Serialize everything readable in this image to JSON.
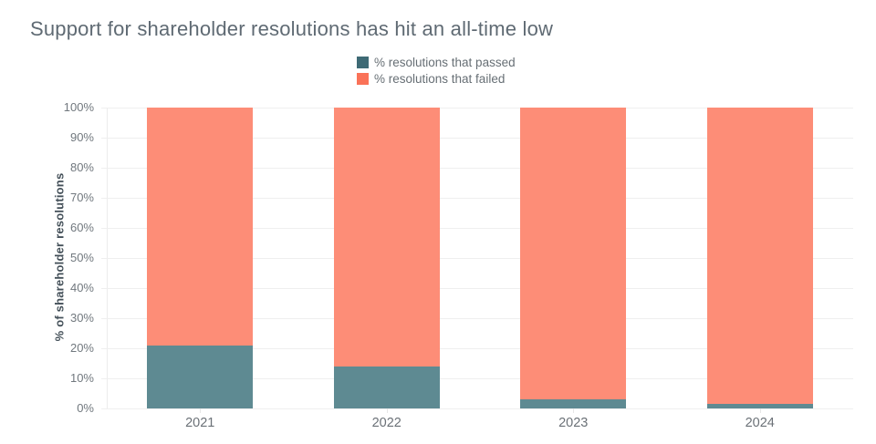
{
  "title": "Support for shareholder resolutions has hit an all-time low",
  "legend": {
    "items": [
      {
        "label": "% resolutions that passed",
        "color": "#3e6a75"
      },
      {
        "label": "% resolutions that failed",
        "color": "#fa7258"
      }
    ]
  },
  "chart_data": {
    "type": "bar",
    "stacked": true,
    "title": "Support for shareholder resolutions has hit an all-time low",
    "xlabel": "",
    "ylabel": "% of shareholder resolutions",
    "ylim": [
      0,
      100
    ],
    "grid": true,
    "legend_position": "top-center",
    "categories": [
      "2021",
      "2022",
      "2023",
      "2024"
    ],
    "series": [
      {
        "name": "% resolutions that passed",
        "color": "#5e8a92",
        "values": [
          21,
          14,
          3,
          1.5
        ]
      },
      {
        "name": "% resolutions that failed",
        "color": "#fd8d77",
        "values": [
          79,
          86,
          97,
          98.5
        ]
      }
    ],
    "yticks": [
      {
        "label": "0%",
        "value": 0
      },
      {
        "label": "10%",
        "value": 10
      },
      {
        "label": "20%",
        "value": 20
      },
      {
        "label": "30%",
        "value": 30
      },
      {
        "label": "40%",
        "value": 40
      },
      {
        "label": "50%",
        "value": 50
      },
      {
        "label": "60%",
        "value": 60
      },
      {
        "label": "70%",
        "value": 70
      },
      {
        "label": "80%",
        "value": 80
      },
      {
        "label": "90%",
        "value": 90
      },
      {
        "label": "100%",
        "value": 100
      }
    ]
  }
}
